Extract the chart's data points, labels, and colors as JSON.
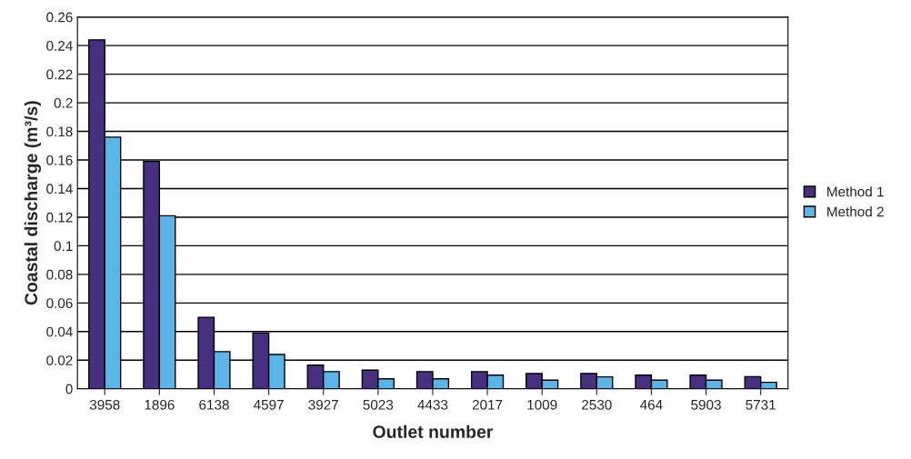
{
  "chart_data": {
    "type": "bar",
    "xlabel": "Outlet number",
    "ylabel": "Coastal discharge (m³/s)",
    "categories": [
      "3958",
      "1896",
      "6138",
      "4597",
      "3927",
      "5023",
      "4433",
      "2017",
      "1009",
      "2530",
      "464",
      "5903",
      "5731"
    ],
    "series": [
      {
        "name": "Method 1",
        "color": "#47307f",
        "values": [
          0.244,
          0.159,
          0.05,
          0.039,
          0.0165,
          0.013,
          0.012,
          0.012,
          0.0106,
          0.0106,
          0.0095,
          0.0095,
          0.0085
        ]
      },
      {
        "name": "Method 2",
        "color": "#5cb3e6",
        "values": [
          0.176,
          0.121,
          0.026,
          0.024,
          0.012,
          0.007,
          0.007,
          0.0095,
          0.006,
          0.0083,
          0.006,
          0.006,
          0.0045
        ]
      }
    ],
    "ylim": [
      0,
      0.26
    ],
    "yticks": [
      0,
      0.02,
      0.04,
      0.06,
      0.08,
      0.1,
      0.12,
      0.14,
      0.16,
      0.18,
      0.2,
      0.22,
      0.24,
      0.26
    ],
    "grid": "y",
    "legend": "right"
  }
}
